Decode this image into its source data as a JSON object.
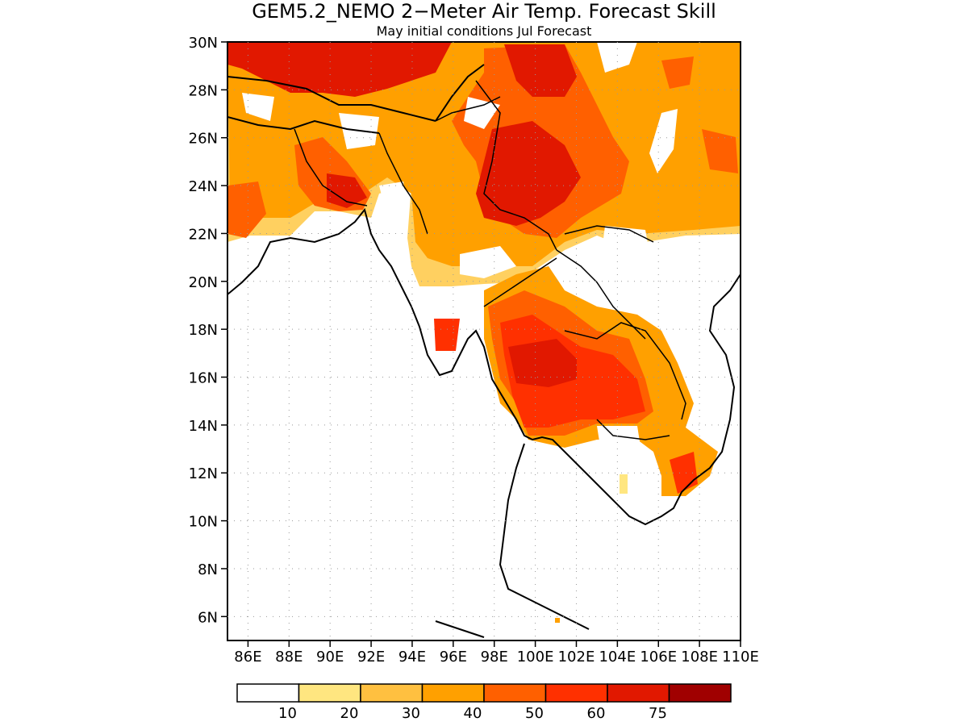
{
  "title": "GEM5.2_NEMO 2−Meter Air Temp. Forecast Skill",
  "subtitle": "May initial conditions  Jul Forecast",
  "map": {
    "lat_range": [
      5,
      30
    ],
    "lon_range": [
      85,
      110
    ],
    "gridlines": true,
    "lat_labels": [
      "30N",
      "28N",
      "26N",
      "24N",
      "22N",
      "20N",
      "18N",
      "16N",
      "14N",
      "12N",
      "10N",
      "8N",
      "6N"
    ],
    "lon_labels": [
      "86E",
      "88E",
      "90E",
      "92E",
      "94E",
      "96E",
      "98E",
      "100E",
      "102E",
      "104E",
      "106E",
      "108E",
      "110E"
    ]
  },
  "colorbar": {
    "labels": [
      "10",
      "20",
      "30",
      "40",
      "50",
      "60",
      "75"
    ],
    "colors": [
      "#ffffff",
      "#ffe680",
      "#ffc040",
      "#ffa000",
      "#ff6000",
      "#ff3000",
      "#e11800",
      "#a00000"
    ]
  }
}
